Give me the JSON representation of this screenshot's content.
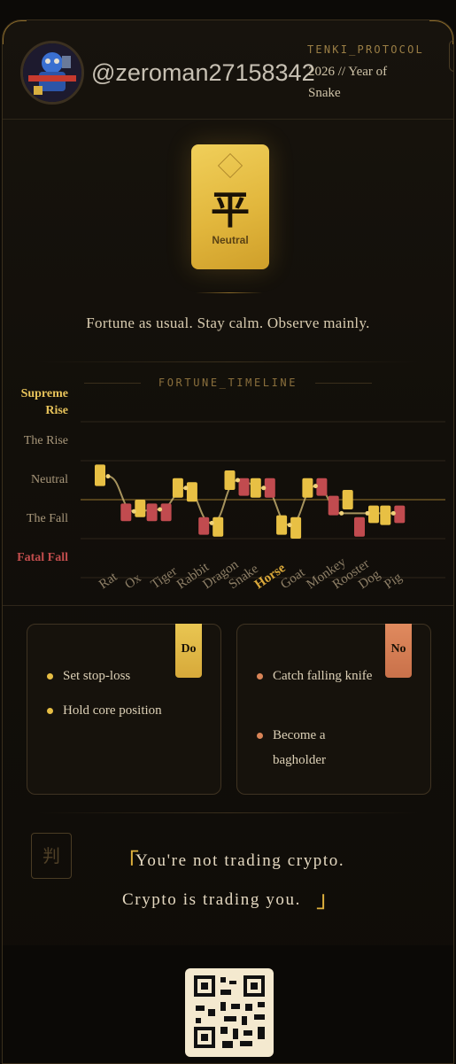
{
  "header": {
    "username": "@zeroman27158342",
    "protocol": "TENKI_PROTOCOL",
    "year_line": "2026 // Year of Snake"
  },
  "talisman": {
    "char": "平",
    "label": "Neutral"
  },
  "fortune_text": "Fortune as usual. Stay calm. Observe mainly.",
  "timeline": {
    "title": "FORTUNE_TIMELINE",
    "y_labels": [
      "Supreme Rise",
      "The Rise",
      "Neutral",
      "The Fall",
      "Fatal Fall"
    ],
    "highlight": "Horse"
  },
  "chart_data": {
    "type": "line",
    "title": "FORTUNE_TIMELINE",
    "categories": [
      "Rat",
      "Ox",
      "Tiger",
      "Rabbit",
      "Dragon",
      "Snake",
      "Horse",
      "Goat",
      "Monkey",
      "Rooster",
      "Dog",
      "Pig"
    ],
    "y_levels": [
      "Fatal Fall",
      "The Fall",
      "Neutral",
      "The Rise",
      "Supreme Rise"
    ],
    "ylim": [
      -2,
      2
    ],
    "series": [
      {
        "values": [
          0.6,
          -0.3,
          -0.25,
          0.3,
          -0.6,
          0.5,
          0.3,
          -0.65,
          0.35,
          -0.35,
          -0.35,
          -0.35
        ]
      }
    ],
    "candles": [
      {
        "x": "Rat",
        "top": 0.9,
        "bottom": 0.35,
        "color": "#e8c044"
      },
      {
        "x": "Ox",
        "top": -0.1,
        "bottom": -0.55,
        "color": "#c14b4f"
      },
      {
        "x": "Ox",
        "top": 0.0,
        "bottom": -0.45,
        "color": "#e8c044"
      },
      {
        "x": "Tiger",
        "top": -0.1,
        "bottom": -0.55,
        "color": "#c14b4f"
      },
      {
        "x": "Tiger",
        "top": -0.1,
        "bottom": -0.55,
        "color": "#c14b4f"
      },
      {
        "x": "Rabbit",
        "top": 0.55,
        "bottom": 0.05,
        "color": "#e8c044"
      },
      {
        "x": "Rabbit",
        "top": 0.45,
        "bottom": -0.05,
        "color": "#e8c044"
      },
      {
        "x": "Dragon",
        "top": -0.45,
        "bottom": -0.9,
        "color": "#c14b4f"
      },
      {
        "x": "Dragon",
        "top": -0.45,
        "bottom": -0.95,
        "color": "#e8c044"
      },
      {
        "x": "Snake",
        "top": 0.75,
        "bottom": 0.25,
        "color": "#e8c044"
      },
      {
        "x": "Snake",
        "top": 0.55,
        "bottom": 0.1,
        "color": "#c14b4f"
      },
      {
        "x": "Horse",
        "top": 0.55,
        "bottom": 0.05,
        "color": "#e8c044"
      },
      {
        "x": "Horse",
        "top": 0.55,
        "bottom": 0.05,
        "color": "#c14b4f"
      },
      {
        "x": "Goat",
        "top": -0.4,
        "bottom": -0.9,
        "color": "#e8c044"
      },
      {
        "x": "Goat",
        "top": -0.45,
        "bottom": -1.0,
        "color": "#e8c044"
      },
      {
        "x": "Monkey",
        "top": 0.55,
        "bottom": 0.05,
        "color": "#e8c044"
      },
      {
        "x": "Monkey",
        "top": 0.55,
        "bottom": 0.1,
        "color": "#c14b4f"
      },
      {
        "x": "Rooster",
        "top": 0.1,
        "bottom": -0.4,
        "color": "#c14b4f"
      },
      {
        "x": "Rooster",
        "top": 0.25,
        "bottom": -0.25,
        "color": "#e8c044"
      },
      {
        "x": "Dog",
        "top": -0.45,
        "bottom": -0.95,
        "color": "#c14b4f"
      },
      {
        "x": "Dog",
        "top": -0.15,
        "bottom": -0.6,
        "color": "#e8c044"
      },
      {
        "x": "Pig",
        "top": -0.15,
        "bottom": -0.65,
        "color": "#e8c044"
      },
      {
        "x": "Pig",
        "top": -0.15,
        "bottom": -0.6,
        "color": "#c14b4f"
      }
    ],
    "grid": true
  },
  "do_panel": {
    "tag": "Do",
    "items": [
      "Set stop-loss",
      "Hold core position"
    ]
  },
  "no_panel": {
    "tag": "No",
    "items": [
      "Catch falling knife",
      "Become a bagholder"
    ]
  },
  "verdict": {
    "icon_char": "判",
    "line1": "You're not trading crypto.",
    "line2": "Crypto is trading you."
  },
  "colors": {
    "gold": "#e8c044",
    "red": "#c14b4f",
    "orange": "#d98457"
  }
}
